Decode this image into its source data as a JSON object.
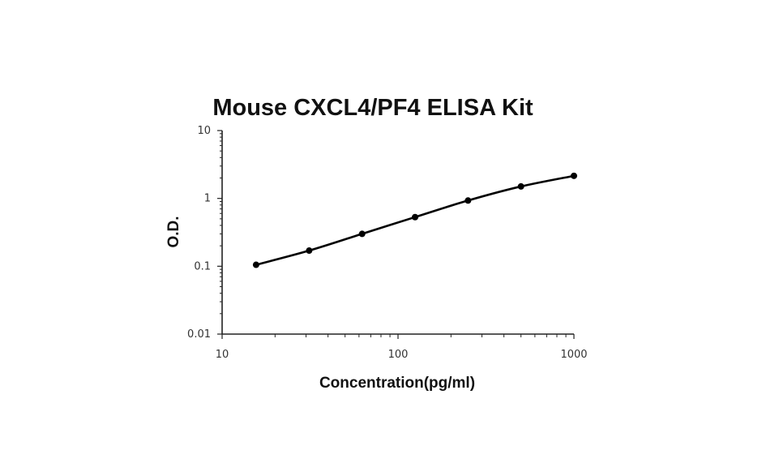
{
  "chart_data": {
    "type": "line",
    "title": "Mouse CXCL4/PF4 ELISA Kit",
    "xlabel": "Concentration(pg/ml)",
    "ylabel": "O.D.",
    "x_scale": "log",
    "y_scale": "log",
    "xlim": [
      10,
      1000
    ],
    "ylim": [
      0.01,
      10
    ],
    "x_ticks": [
      10,
      100,
      1000
    ],
    "x_tick_labels": [
      "10",
      "100",
      "1000"
    ],
    "y_ticks": [
      0.01,
      0.1,
      1,
      10
    ],
    "y_tick_labels": [
      "0.01",
      "0.1",
      "1",
      "10"
    ],
    "grid": false,
    "series": [
      {
        "x": [
          15.6,
          31.25,
          62.5,
          125,
          250,
          500,
          1000
        ],
        "y": [
          0.105,
          0.17,
          0.3,
          0.53,
          0.93,
          1.5,
          2.15
        ],
        "color": "#000000",
        "marker": "circle"
      }
    ]
  }
}
